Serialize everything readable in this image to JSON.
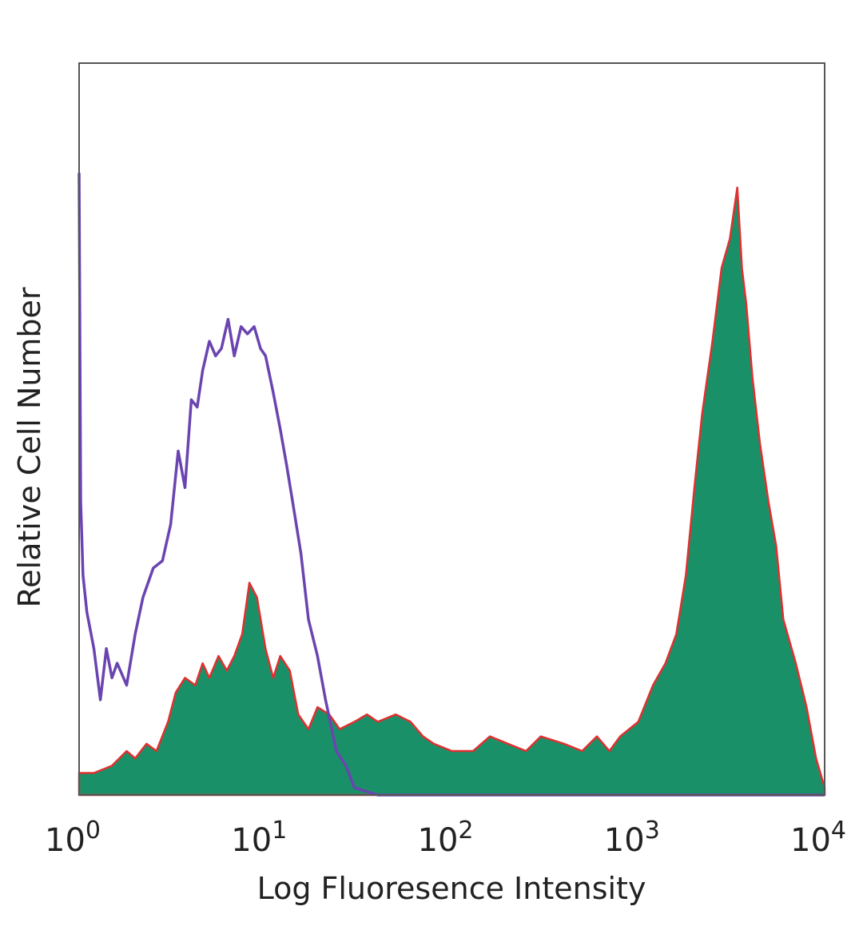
{
  "chart_data": {
    "type": "area",
    "title": "",
    "xlabel": "Log Fluoresence Intensity",
    "ylabel": "Relative Cell Number",
    "x_scale": "log",
    "xlim": [
      1,
      10000
    ],
    "ylim": [
      0,
      100
    ],
    "grid": false,
    "legend": "none",
    "x_ticks": [
      {
        "base": "10",
        "exp": "0"
      },
      {
        "base": "10",
        "exp": "1"
      },
      {
        "base": "10",
        "exp": "2"
      },
      {
        "base": "10",
        "exp": "3"
      },
      {
        "base": "10",
        "exp": "4"
      }
    ],
    "series": [
      {
        "style": "filled",
        "color": "#1a9068",
        "edge_color": "#e03030",
        "x": [
          1.0,
          1.2,
          1.5,
          1.8,
          2.0,
          2.3,
          2.6,
          3.0,
          3.3,
          3.7,
          4.2,
          4.6,
          5.0,
          5.6,
          6.2,
          6.8,
          7.5,
          8.2,
          9.0,
          10.0,
          11.0,
          12.0,
          13.5,
          15.0,
          17.0,
          19.0,
          22.0,
          25.0,
          30.0,
          35.0,
          40.0,
          50.0,
          60.0,
          70.0,
          80.0,
          100.0,
          130.0,
          160.0,
          200.0,
          250.0,
          300.0,
          400.0,
          500.0,
          600.0,
          700.0,
          800.0,
          1000.0,
          1200.0,
          1400.0,
          1600.0,
          1800.0,
          2000.0,
          2200.0,
          2500.0,
          2800.0,
          3100.0,
          3400.0,
          3600.0,
          3800.0,
          4100.0,
          4500.0,
          5000.0,
          5500.0,
          6000.0,
          7000.0,
          8000.0,
          9000.0,
          10000.0
        ],
        "y": [
          3,
          3,
          4,
          6,
          5,
          7,
          6,
          10,
          14,
          16,
          15,
          18,
          16,
          19,
          17,
          19,
          22,
          29,
          27,
          20,
          16,
          19,
          17,
          11,
          9,
          12,
          11,
          9,
          10,
          11,
          10,
          11,
          10,
          8,
          7,
          6,
          6,
          8,
          7,
          6,
          8,
          7,
          6,
          8,
          6,
          8,
          10,
          15,
          18,
          22,
          30,
          42,
          52,
          62,
          72,
          76,
          83,
          72,
          67,
          57,
          48,
          40,
          34,
          24,
          18,
          12,
          5,
          1
        ]
      },
      {
        "style": "line",
        "color": "#6a44b0",
        "x": [
          1.0,
          1.02,
          1.05,
          1.1,
          1.2,
          1.3,
          1.4,
          1.5,
          1.6,
          1.8,
          2.0,
          2.2,
          2.5,
          2.8,
          3.1,
          3.4,
          3.7,
          4.0,
          4.3,
          4.6,
          5.0,
          5.4,
          5.8,
          6.3,
          6.8,
          7.4,
          8.0,
          8.7,
          9.4,
          10.0,
          11.0,
          12.0,
          13.0,
          14.0,
          15.5,
          17.0,
          19.0,
          21.0,
          24.0,
          27.0,
          30.0,
          40.0,
          100.0,
          1000.0,
          10000.0
        ],
        "y": [
          85,
          40,
          30,
          25,
          20,
          13,
          20,
          16,
          18,
          15,
          22,
          27,
          31,
          32,
          37,
          47,
          42,
          54,
          53,
          58,
          62,
          60,
          61,
          65,
          60,
          64,
          63,
          64,
          61,
          60,
          55,
          50,
          45,
          40,
          33,
          24,
          19,
          13,
          6,
          4,
          1,
          0,
          0,
          0,
          0
        ]
      }
    ]
  }
}
